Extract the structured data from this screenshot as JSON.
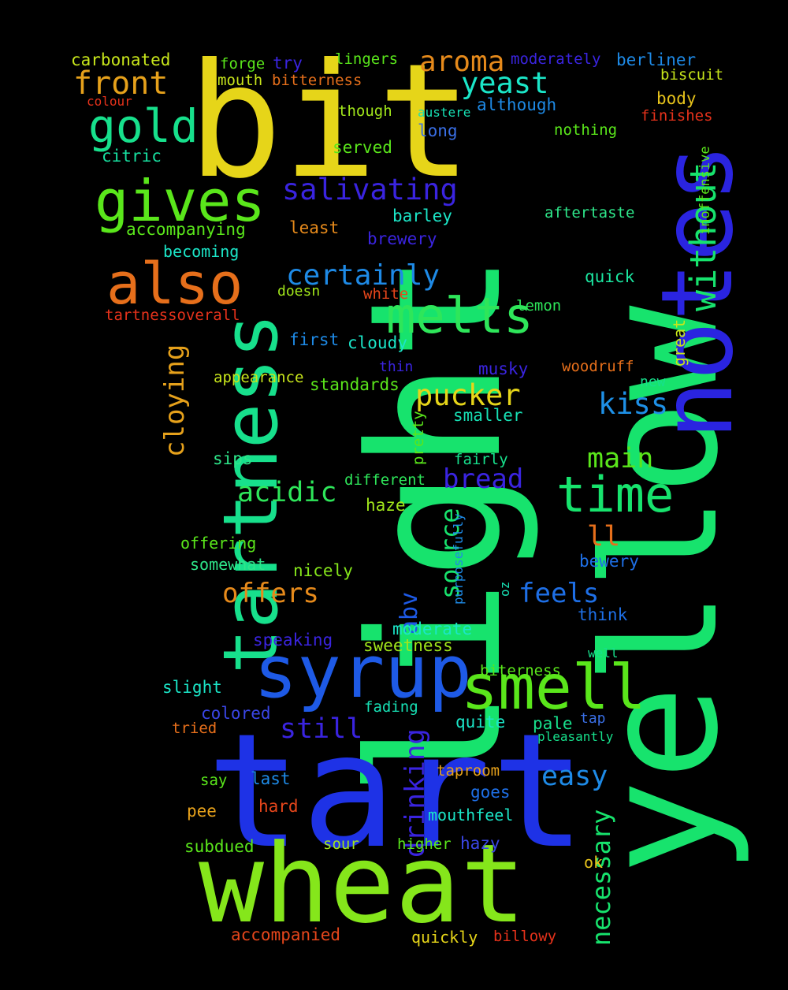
{
  "words": [
    {
      "text": "light",
      "color": "#17e36d"
    },
    {
      "text": "yellow",
      "color": "#17e36d"
    },
    {
      "text": "bit",
      "color": "#e6d519"
    },
    {
      "text": "tart",
      "color": "#1e32e6"
    },
    {
      "text": "notes",
      "color": "#2a24e0"
    },
    {
      "text": "wheat",
      "color": "#85e61b"
    },
    {
      "text": "tartness",
      "color": "#17e08c"
    },
    {
      "text": "syrup",
      "color": "#1e5ae6"
    },
    {
      "text": "smell",
      "color": "#5ae61b"
    },
    {
      "text": "gives",
      "color": "#5ae61b"
    },
    {
      "text": "also",
      "color": "#e66f1b"
    },
    {
      "text": "melts",
      "color": "#2ee65a"
    },
    {
      "text": "time",
      "color": "#17e36d"
    },
    {
      "text": "gold",
      "color": "#17e08c"
    },
    {
      "text": "without",
      "color": "#17e36d"
    },
    {
      "text": "front",
      "color": "#e6a11b"
    },
    {
      "text": "aroma",
      "color": "#e68a1b"
    },
    {
      "text": "yeast",
      "color": "#1be6c8"
    },
    {
      "text": "pucker",
      "color": "#e6d519"
    },
    {
      "text": "salivating",
      "color": "#3a24e0"
    },
    {
      "text": "certainly",
      "color": "#1e8ae6"
    },
    {
      "text": "kiss",
      "color": "#1e90e6"
    },
    {
      "text": "main",
      "color": "#5ae61b"
    },
    {
      "text": "cloying",
      "color": "#e6a11b"
    },
    {
      "text": "acidic",
      "color": "#2ee65a"
    },
    {
      "text": "bread",
      "color": "#3a24e0"
    },
    {
      "text": "offers",
      "color": "#e68a1b"
    },
    {
      "text": "feels",
      "color": "#1e6fe6"
    },
    {
      "text": "drinking",
      "color": "#3a24e0"
    },
    {
      "text": "source",
      "color": "#17e36d"
    },
    {
      "text": "easy",
      "color": "#1e8ae6"
    },
    {
      "text": "necessary",
      "color": "#17e36d"
    },
    {
      "text": "ll",
      "color": "#e66f1b"
    },
    {
      "text": "still",
      "color": "#3a24e0"
    },
    {
      "text": "abv",
      "color": "#1e5ae6"
    },
    {
      "text": "carbonated",
      "color": "#c8e61b"
    },
    {
      "text": "forge",
      "color": "#5ae61b"
    },
    {
      "text": "try",
      "color": "#3a24e0"
    },
    {
      "text": "lingers",
      "color": "#5ae61b"
    },
    {
      "text": "moderately",
      "color": "#3a24e0"
    },
    {
      "text": "berliner",
      "color": "#1e8ae6"
    },
    {
      "text": "mouth",
      "color": "#c8e61b"
    },
    {
      "text": "bitterness",
      "color": "#e66f1b"
    },
    {
      "text": "biscuit",
      "color": "#c8e61b"
    },
    {
      "text": "colour",
      "color": "#e6321b"
    },
    {
      "text": "body",
      "color": "#e6c21b"
    },
    {
      "text": "although",
      "color": "#1e8ae6"
    },
    {
      "text": "though",
      "color": "#a1e61b"
    },
    {
      "text": "austere",
      "color": "#17e0b4"
    },
    {
      "text": "finishes",
      "color": "#e6321b"
    },
    {
      "text": "long",
      "color": "#3a6fe6"
    },
    {
      "text": "nothing",
      "color": "#5ae61b"
    },
    {
      "text": "citric",
      "color": "#17e0a0"
    },
    {
      "text": "served",
      "color": "#5ae61b"
    },
    {
      "text": "inoffensive",
      "color": "#5ae61b"
    },
    {
      "text": "barley",
      "color": "#1be6c8"
    },
    {
      "text": "aftertaste",
      "color": "#2ee68a"
    },
    {
      "text": "accompanying",
      "color": "#5ae61b"
    },
    {
      "text": "least",
      "color": "#e68a1b"
    },
    {
      "text": "brewery",
      "color": "#3a24e0"
    },
    {
      "text": "becoming",
      "color": "#1be6c8"
    },
    {
      "text": "quick",
      "color": "#1be6a0"
    },
    {
      "text": "doesn",
      "color": "#a1e61b"
    },
    {
      "text": "white",
      "color": "#e6461b"
    },
    {
      "text": "lemon",
      "color": "#2ee65a"
    },
    {
      "text": "tartnessoverall",
      "color": "#e6321b"
    },
    {
      "text": "great",
      "color": "#c8e61b"
    },
    {
      "text": "first",
      "color": "#1e8ae6"
    },
    {
      "text": "cloudy",
      "color": "#1be6c8"
    },
    {
      "text": "thin",
      "color": "#3a24e0"
    },
    {
      "text": "musky",
      "color": "#3a24e0"
    },
    {
      "text": "woodruff",
      "color": "#e66f1b"
    },
    {
      "text": "appearance",
      "color": "#c8e61b"
    },
    {
      "text": "standards",
      "color": "#5ae61b"
    },
    {
      "text": "new",
      "color": "#17e08c"
    },
    {
      "text": "pretty",
      "color": "#5ae61b"
    },
    {
      "text": "smaller",
      "color": "#17e0b4"
    },
    {
      "text": "sips",
      "color": "#2ee68a"
    },
    {
      "text": "fairly",
      "color": "#17e08c"
    },
    {
      "text": "different",
      "color": "#2ee65a"
    },
    {
      "text": "haze",
      "color": "#a1e61b"
    },
    {
      "text": "purposefully",
      "color": "#1e8ae6"
    },
    {
      "text": "offering",
      "color": "#5ae61b"
    },
    {
      "text": "somewhat",
      "color": "#2ee68a"
    },
    {
      "text": "nicely",
      "color": "#85e61b"
    },
    {
      "text": "bewery",
      "color": "#1e6fe6"
    },
    {
      "text": "oz",
      "color": "#17e0b4"
    },
    {
      "text": "think",
      "color": "#1e6fe6"
    },
    {
      "text": "moderate",
      "color": "#1be6c8"
    },
    {
      "text": "speaking",
      "color": "#3a24e0"
    },
    {
      "text": "sweetness",
      "color": "#a1e61b"
    },
    {
      "text": "well",
      "color": "#17e08c"
    },
    {
      "text": "biterness",
      "color": "#5ae61b"
    },
    {
      "text": "slight",
      "color": "#1be6c8"
    },
    {
      "text": "fading",
      "color": "#17e0b4"
    },
    {
      "text": "colored",
      "color": "#3a46e6"
    },
    {
      "text": "quite",
      "color": "#1be6c8"
    },
    {
      "text": "pale",
      "color": "#17e08c"
    },
    {
      "text": "tap",
      "color": "#3a6fe6"
    },
    {
      "text": "tried",
      "color": "#e66f1b"
    },
    {
      "text": "pleasantly",
      "color": "#17e08c"
    },
    {
      "text": "taproom",
      "color": "#e6a11b"
    },
    {
      "text": "say",
      "color": "#5ae61b"
    },
    {
      "text": "last",
      "color": "#1e8ae6"
    },
    {
      "text": "goes",
      "color": "#1e6fe6"
    },
    {
      "text": "pee",
      "color": "#e6a11b"
    },
    {
      "text": "hard",
      "color": "#e6461b"
    },
    {
      "text": "mouthfeel",
      "color": "#1be6c8"
    },
    {
      "text": "subdued",
      "color": "#5ae61b"
    },
    {
      "text": "sour",
      "color": "#a1e61b"
    },
    {
      "text": "higher",
      "color": "#5ae61b"
    },
    {
      "text": "hazy",
      "color": "#3a46e6"
    },
    {
      "text": "ok",
      "color": "#e6c21b"
    },
    {
      "text": "accompanied",
      "color": "#e6461b"
    },
    {
      "text": "quickly",
      "color": "#e6d519"
    },
    {
      "text": "billowy",
      "color": "#e6321b"
    }
  ]
}
